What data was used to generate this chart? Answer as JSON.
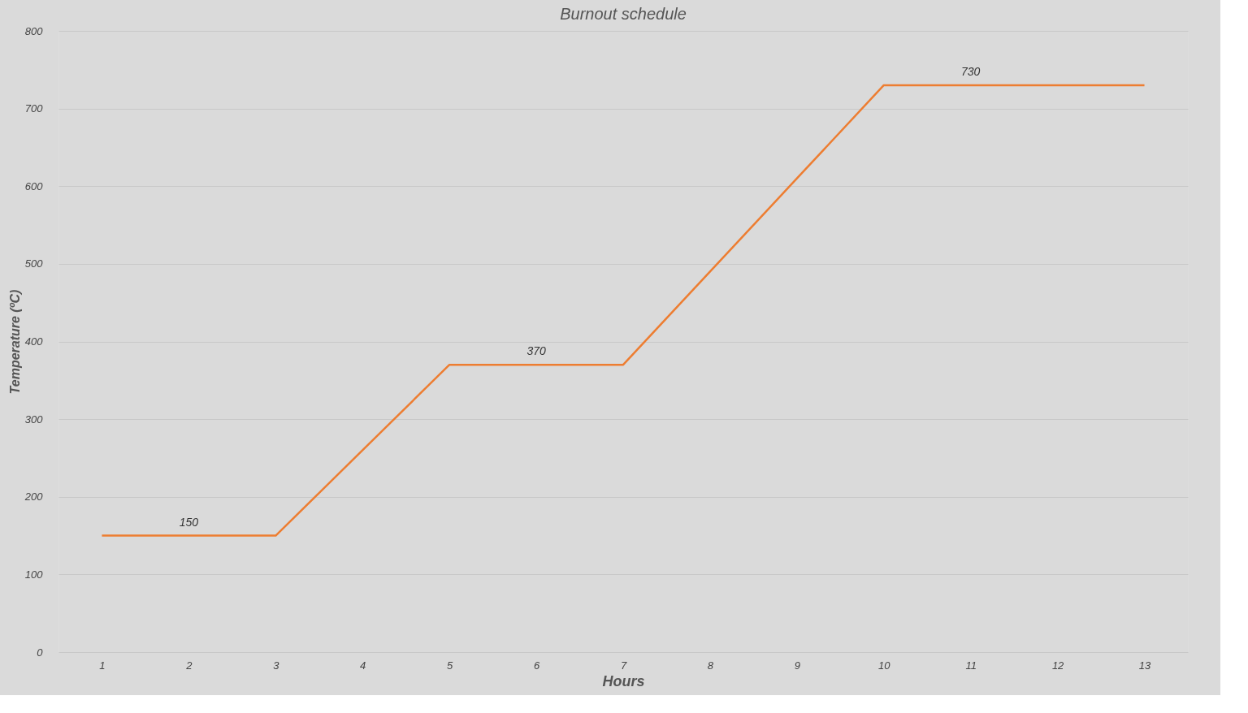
{
  "chart_data": {
    "type": "line",
    "title": "Burnout schedule",
    "xlabel": "Hours",
    "ylabel": "Temperature (ºC)",
    "categories": [
      "1",
      "2",
      "3",
      "4",
      "5",
      "6",
      "7",
      "8",
      "9",
      "10",
      "11",
      "12",
      "13"
    ],
    "series": [
      {
        "color": "#ed7d31",
        "values": [
          150,
          150,
          150,
          260,
          370,
          370,
          370,
          490,
          610,
          730,
          730,
          730,
          730
        ],
        "value_labels": [
          null,
          "150",
          null,
          null,
          null,
          "370",
          null,
          null,
          null,
          null,
          "730",
          null,
          null
        ]
      }
    ],
    "ylim": [
      0,
      800
    ],
    "yticks": [
      0,
      100,
      200,
      300,
      400,
      500,
      600,
      700,
      800
    ],
    "grid": "y",
    "marker": "none",
    "line_style": "solid"
  }
}
